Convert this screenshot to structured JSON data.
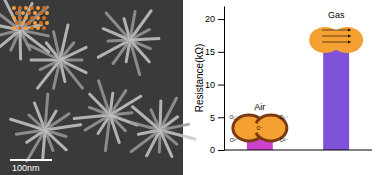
{
  "chart_data": {
    "type": "bar",
    "y_label": "Resistance(kΩ)",
    "categories": [
      "Air",
      "Gas"
    ],
    "values": [
      2.1,
      16.7
    ],
    "colors": [
      "#cc44cc",
      "#7f52d8"
    ],
    "ylim": [
      0,
      22
    ],
    "yticks": [
      0,
      5,
      10,
      15,
      20
    ],
    "grid": false,
    "tick_labels": "y",
    "annotations": [
      "O₂⁻",
      "O₂⁻",
      "O⁻",
      "O²⁻",
      "O²⁻"
    ]
  },
  "image": {
    "scale_bar": "100nm"
  }
}
